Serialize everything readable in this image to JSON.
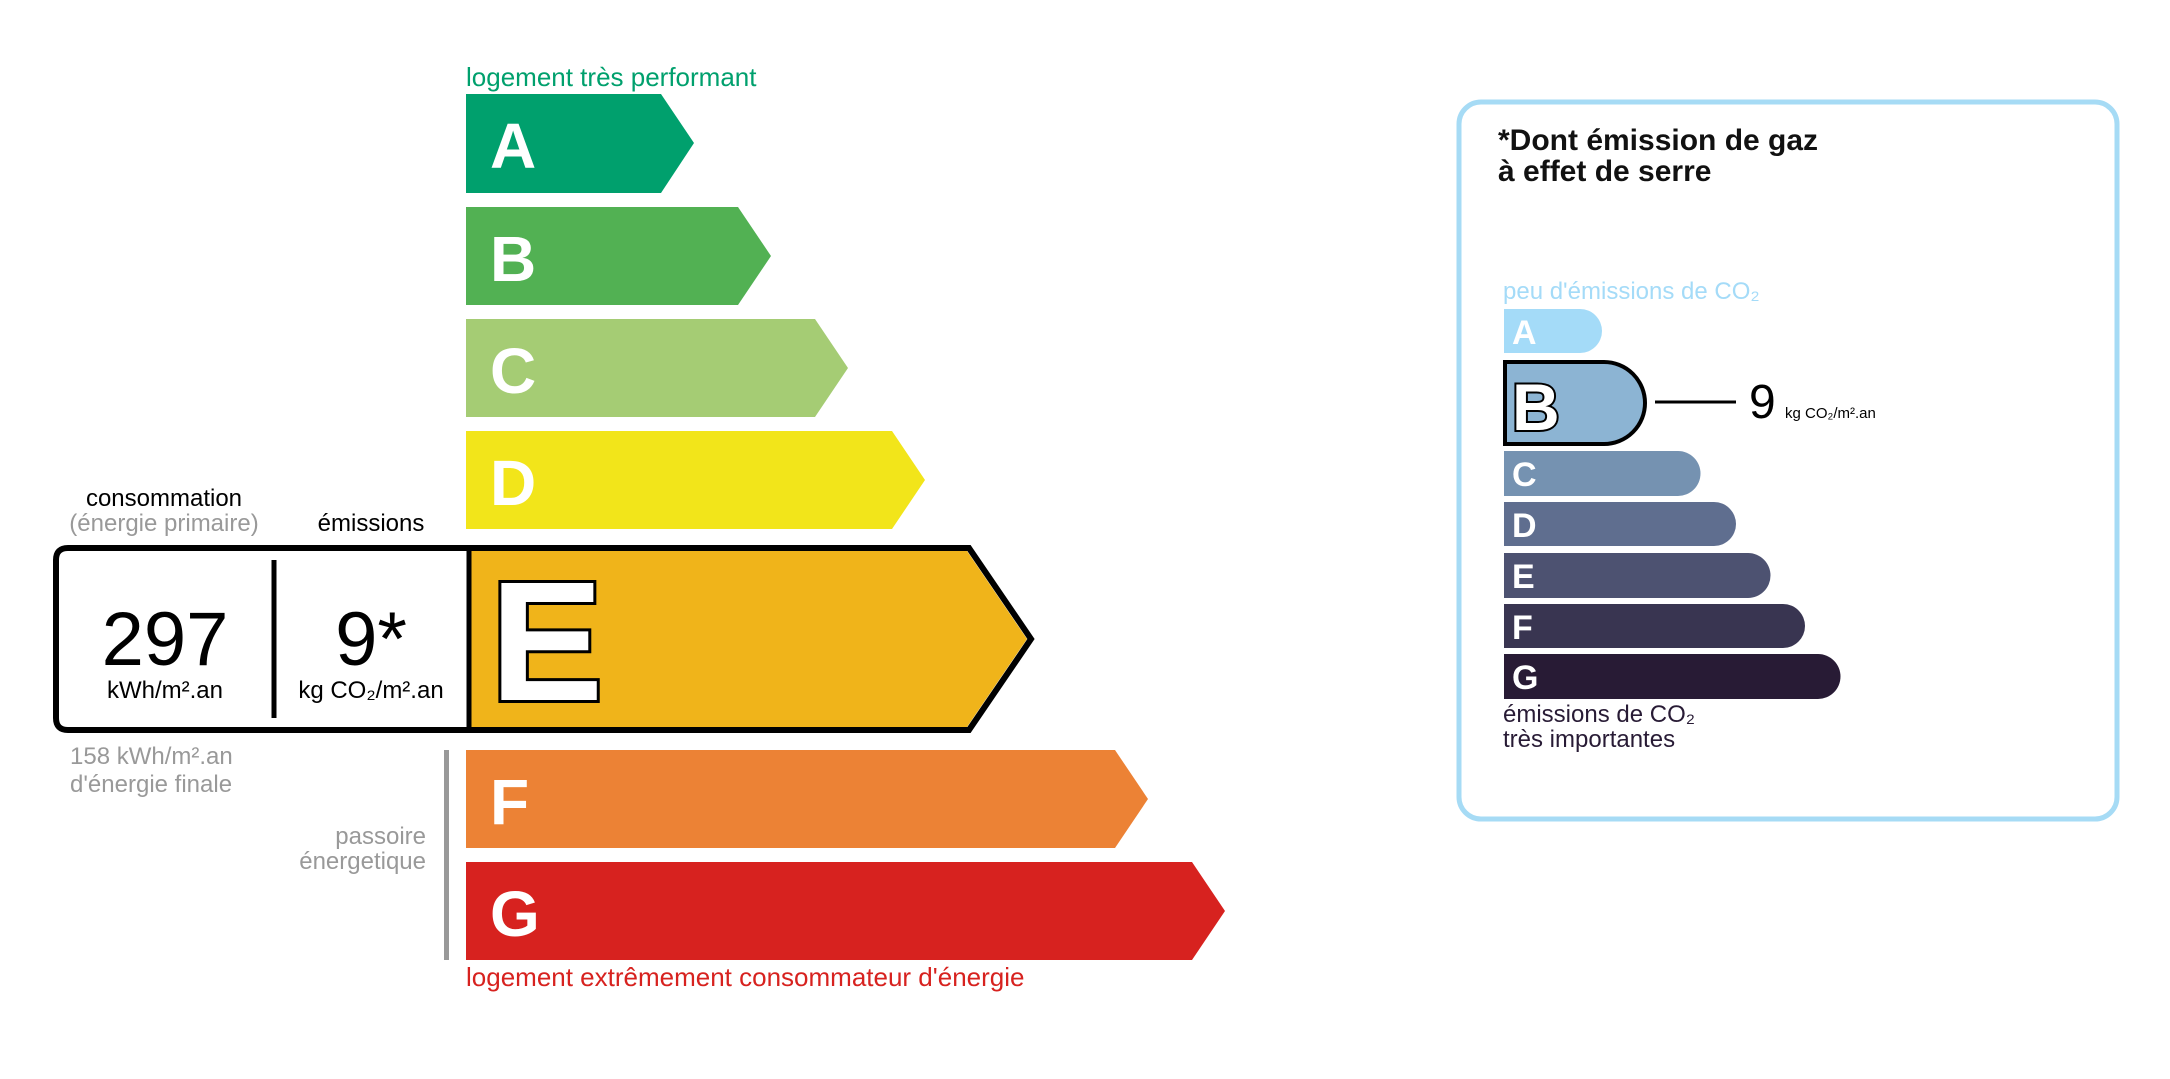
{
  "dpe": {
    "top_label": "logement très performant",
    "bottom_label": "logement extrêmement consommateur d'énergie",
    "classes": [
      {
        "letter": "A",
        "color": "#00a06d"
      },
      {
        "letter": "B",
        "color": "#52b153"
      },
      {
        "letter": "C",
        "color": "#a5cc74"
      },
      {
        "letter": "D",
        "color": "#f2e51a"
      },
      {
        "letter": "E",
        "color": "#f0b41a"
      },
      {
        "letter": "F",
        "color": "#ec8235"
      },
      {
        "letter": "G",
        "color": "#d7221f"
      }
    ],
    "current_class": "E",
    "consumption_label": "consommation",
    "consumption_sublabel": "(énergie primaire)",
    "emissions_label": "émissions",
    "consumption_value": "297",
    "consumption_unit": "kWh/m².an",
    "emissions_value": "9*",
    "emissions_unit": "kg CO₂/m².an",
    "final_energy_line1": "158 kWh/m².an",
    "final_energy_line2": "d'énergie finale",
    "passoire_line1": "passoire",
    "passoire_line2": "énergetique"
  },
  "ges": {
    "title_line1": "*Dont émission de gaz",
    "title_line2": "à effet de serre",
    "top_label": "peu d'émissions de CO₂",
    "bottom_line1": "émissions de CO₂",
    "bottom_line2": "très importantes",
    "classes": [
      {
        "letter": "A",
        "color": "#a4dbf8"
      },
      {
        "letter": "B",
        "color": "#8cb4d3"
      },
      {
        "letter": "C",
        "color": "#7592b1"
      },
      {
        "letter": "D",
        "color": "#5f6e8f"
      },
      {
        "letter": "E",
        "color": "#4d5271"
      },
      {
        "letter": "F",
        "color": "#393551"
      },
      {
        "letter": "G",
        "color": "#281b35"
      }
    ],
    "current_class": "B",
    "value": "9",
    "unit": "kg CO₂/m².an",
    "border_color": "#a6dbf5"
  }
}
